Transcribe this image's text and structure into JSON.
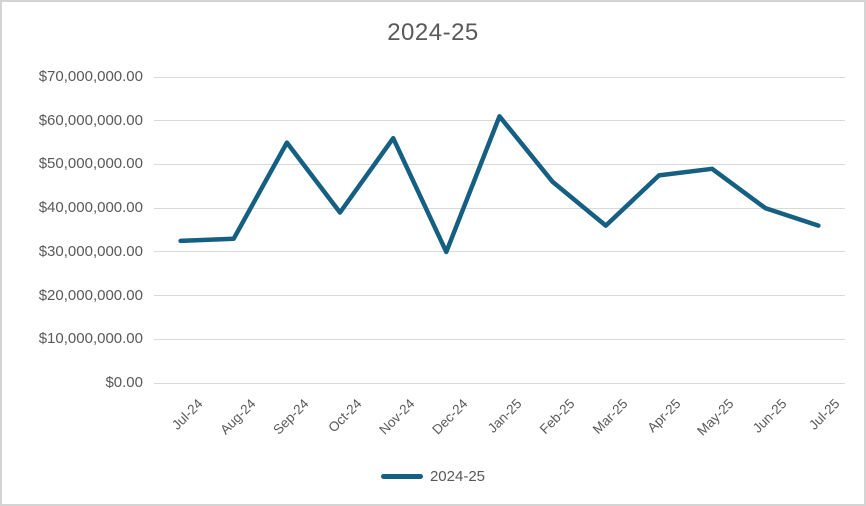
{
  "chart_data": {
    "type": "line",
    "title": "2024-25",
    "categories": [
      "Jul-24",
      "Aug-24",
      "Sep-24",
      "Oct-24",
      "Nov-24",
      "Dec-24",
      "Jan-25",
      "Feb-25",
      "Mar-25",
      "Apr-25",
      "May-25",
      "Jun-25",
      "Jul-25"
    ],
    "series": [
      {
        "name": "2024-25",
        "color": "#156082",
        "values": [
          32500000,
          33000000,
          55000000,
          39000000,
          56000000,
          30000000,
          61000000,
          46000000,
          36000000,
          47500000,
          49000000,
          40000000,
          36000000
        ]
      }
    ],
    "xlabel": "",
    "ylabel": "",
    "ylim": [
      0,
      70000000
    ],
    "y_tick_step": 10000000,
    "y_tick_labels": [
      "$0.00",
      "$10,000,000.00",
      "$20,000,000.00",
      "$30,000,000.00",
      "$40,000,000.00",
      "$50,000,000.00",
      "$60,000,000.00",
      "$70,000,000.00"
    ],
    "grid": "horizontal-on",
    "legend_position": "bottom",
    "x_label_rotation": -45,
    "colors": {
      "text": "#595959",
      "gridline": "#d9d9d9",
      "background": "#ffffff",
      "border": "#d4d4d4"
    }
  }
}
